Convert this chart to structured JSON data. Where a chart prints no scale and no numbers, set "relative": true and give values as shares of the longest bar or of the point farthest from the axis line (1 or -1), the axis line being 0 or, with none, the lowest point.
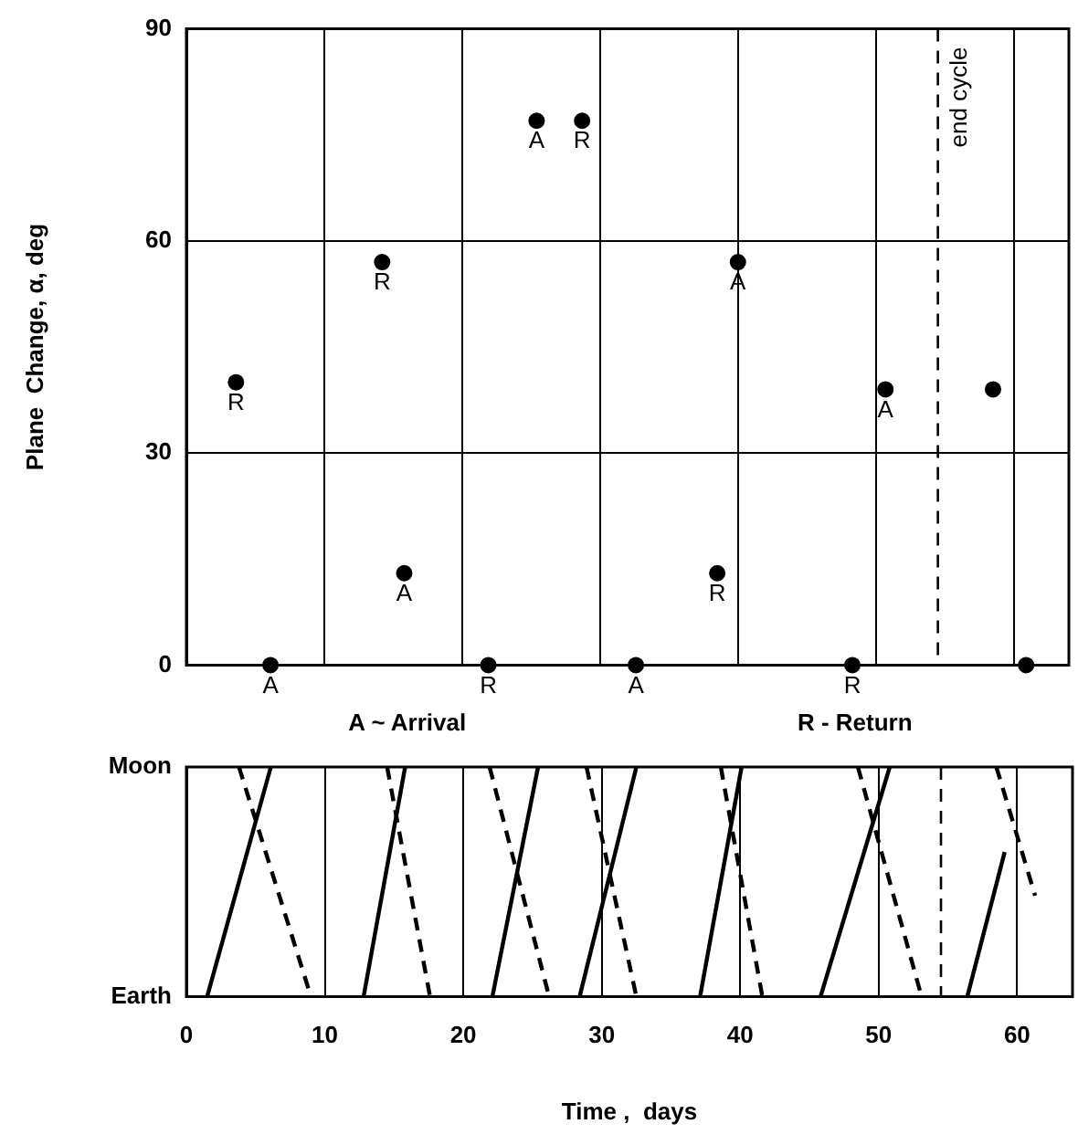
{
  "chart_data": [
    {
      "type": "scatter",
      "ylabel": "Plane  Change, α, deg",
      "xlim": [
        0,
        64
      ],
      "ylim": [
        0,
        90
      ],
      "xticks": [
        0,
        10,
        20,
        30,
        40,
        50,
        60
      ],
      "yticks": [
        0,
        30,
        60,
        90
      ],
      "tick_labels": "y",
      "grid": true,
      "legend": false,
      "marker": "circle",
      "series": [
        {
          "color": "#000000",
          "x": [
            3.6,
            6.1,
            14.2,
            15.8,
            21.9,
            25.4,
            28.7,
            32.6,
            38.5,
            40.0,
            48.3,
            50.7,
            58.5,
            60.9
          ],
          "values": [
            40,
            0,
            57,
            13,
            0,
            77,
            77,
            0,
            13,
            57,
            0,
            39,
            39,
            0
          ]
        }
      ],
      "ref_lines": [
        {
          "axis": "x",
          "value": 54.5,
          "label": "end cycle",
          "color": "#000000",
          "line_style": "dashed"
        }
      ],
      "annotations": [
        {
          "text": "R",
          "x": 3.6,
          "y": 40
        },
        {
          "text": "A",
          "x": 6.1,
          "y": 0
        },
        {
          "text": "R",
          "x": 14.2,
          "y": 57
        },
        {
          "text": "A",
          "x": 15.8,
          "y": 13
        },
        {
          "text": "R",
          "x": 21.9,
          "y": 0
        },
        {
          "text": "A",
          "x": 25.4,
          "y": 77
        },
        {
          "text": "R",
          "x": 28.7,
          "y": 77
        },
        {
          "text": "A",
          "x": 32.6,
          "y": 0
        },
        {
          "text": "R",
          "x": 38.5,
          "y": 13
        },
        {
          "text": "A",
          "x": 40.0,
          "y": 57
        },
        {
          "text": "R",
          "x": 48.3,
          "y": 0
        },
        {
          "text": "A",
          "x": 50.7,
          "y": 39
        },
        "A ~ Arrival",
        "R - Return"
      ]
    },
    {
      "type": "line",
      "xlabel": "Time ,  days",
      "xlim": [
        0,
        64
      ],
      "relative": true,
      "xticks": [
        0,
        10,
        20,
        30,
        40,
        50,
        60
      ],
      "grid": "x",
      "legend": false,
      "marker": "none",
      "annotations": [
        "Earth",
        "Moon"
      ],
      "series": [
        {
          "color": "#000000",
          "line_style": "solid",
          "x": [
            1.5,
            6.1
          ],
          "values": [
            0,
            1
          ]
        },
        {
          "color": "#000000",
          "line_style": "solid",
          "x": [
            12.8,
            15.8
          ],
          "values": [
            0,
            1
          ]
        },
        {
          "color": "#000000",
          "line_style": "solid",
          "x": [
            22.1,
            25.4
          ],
          "values": [
            0,
            1
          ]
        },
        {
          "color": "#000000",
          "line_style": "solid",
          "x": [
            28.4,
            32.5
          ],
          "values": [
            0,
            1
          ]
        },
        {
          "color": "#000000",
          "line_style": "solid",
          "x": [
            37.1,
            40.1
          ],
          "values": [
            0,
            1
          ]
        },
        {
          "color": "#000000",
          "line_style": "solid",
          "x": [
            45.8,
            50.8
          ],
          "values": [
            0,
            1
          ]
        },
        {
          "color": "#000000",
          "line_style": "solid",
          "x": [
            56.4,
            59.1
          ],
          "values": [
            0,
            0.63
          ]
        },
        {
          "color": "#000000",
          "line_style": "dashed",
          "x": [
            3.8,
            9.0
          ],
          "values": [
            1,
            0
          ]
        },
        {
          "color": "#000000",
          "line_style": "dashed",
          "x": [
            14.5,
            17.6
          ],
          "values": [
            1,
            0
          ]
        },
        {
          "color": "#000000",
          "line_style": "dashed",
          "x": [
            21.9,
            26.2
          ],
          "values": [
            1,
            0
          ]
        },
        {
          "color": "#000000",
          "line_style": "dashed",
          "x": [
            28.9,
            32.5
          ],
          "values": [
            1,
            0
          ]
        },
        {
          "color": "#000000",
          "line_style": "dashed",
          "x": [
            38.6,
            41.6
          ],
          "values": [
            1,
            0
          ]
        },
        {
          "color": "#000000",
          "line_style": "dashed",
          "x": [
            48.5,
            53.1
          ],
          "values": [
            1,
            0
          ]
        },
        {
          "color": "#000000",
          "line_style": "dashed",
          "x": [
            58.5,
            61.3
          ],
          "values": [
            1,
            0.44
          ]
        }
      ],
      "ref_lines": [
        {
          "axis": "x",
          "value": 54.5,
          "color": "#000000",
          "line_style": "dashed"
        }
      ]
    }
  ]
}
